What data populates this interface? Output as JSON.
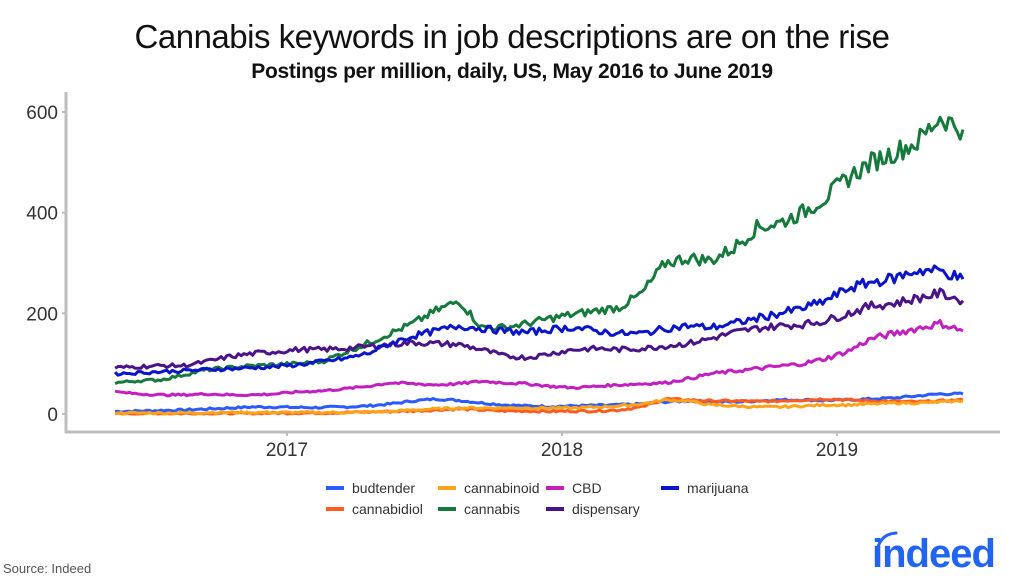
{
  "header": {
    "title": "Cannabis keywords in job descriptions are on the rise",
    "subtitle": "Postings per million, daily, US, May 2016 to June 2019"
  },
  "footer": {
    "source": "Source: Indeed",
    "logo": "indeed",
    "logo_color": "#2164f3"
  },
  "chart_data": {
    "type": "line",
    "title": "Cannabis keywords in job descriptions are on the rise",
    "subtitle": "Postings per million, daily, US, May 2016 to June 2019",
    "xlabel": "",
    "ylabel": "",
    "ylim": [
      0,
      620
    ],
    "yticks": [
      0,
      200,
      400,
      600
    ],
    "xticks": [
      "2017",
      "2018",
      "2019"
    ],
    "grid": false,
    "legend_position": "bottom",
    "x": [
      "2016-05",
      "2016-06",
      "2016-07",
      "2016-08",
      "2016-09",
      "2016-10",
      "2016-11",
      "2016-12",
      "2017-01",
      "2017-02",
      "2017-03",
      "2017-04",
      "2017-05",
      "2017-06",
      "2017-07",
      "2017-08",
      "2017-09",
      "2017-10",
      "2017-11",
      "2017-12",
      "2018-01",
      "2018-02",
      "2018-03",
      "2018-04",
      "2018-05",
      "2018-06",
      "2018-07",
      "2018-08",
      "2018-09",
      "2018-10",
      "2018-11",
      "2018-12",
      "2019-01",
      "2019-02",
      "2019-03",
      "2019-04",
      "2019-05",
      "2019-06"
    ],
    "series": [
      {
        "name": "budtender",
        "color": "#2b5bff",
        "values": [
          5,
          6,
          7,
          8,
          10,
          12,
          14,
          14,
          13,
          13,
          14,
          16,
          20,
          26,
          30,
          27,
          22,
          18,
          16,
          15,
          16,
          17,
          18,
          20,
          24,
          26,
          25,
          24,
          26,
          28,
          28,
          27,
          28,
          30,
          32,
          36,
          40,
          40
        ]
      },
      {
        "name": "cannabidiol",
        "color": "#ff5a1f",
        "values": [
          1,
          1,
          1,
          1,
          1,
          1,
          1,
          2,
          2,
          2,
          3,
          4,
          5,
          6,
          8,
          10,
          8,
          6,
          6,
          5,
          6,
          6,
          8,
          14,
          30,
          28,
          26,
          26,
          25,
          26,
          28,
          30,
          28,
          26,
          25,
          24,
          26,
          28
        ]
      },
      {
        "name": "cannabinoid",
        "color": "#ffa31a",
        "values": [
          2,
          2,
          2,
          2,
          3,
          3,
          3,
          3,
          3,
          3,
          3,
          4,
          5,
          8,
          10,
          12,
          12,
          12,
          12,
          12,
          12,
          14,
          16,
          20,
          28,
          26,
          18,
          16,
          14,
          14,
          16,
          18,
          18,
          20,
          22,
          22,
          24,
          26
        ]
      },
      {
        "name": "cannabis",
        "color": "#157a3c",
        "values": [
          62,
          66,
          68,
          78,
          88,
          92,
          96,
          98,
          100,
          104,
          122,
          140,
          160,
          180,
          205,
          225,
          172,
          172,
          180,
          190,
          198,
          205,
          212,
          240,
          300,
          310,
          305,
          330,
          370,
          380,
          400,
          430,
          470,
          500,
          520,
          540,
          590,
          565
        ]
      },
      {
        "name": "CBD",
        "color": "#c21fc0",
        "values": [
          44,
          40,
          38,
          38,
          40,
          38,
          38,
          40,
          44,
          46,
          50,
          55,
          62,
          60,
          58,
          60,
          65,
          62,
          60,
          55,
          52,
          55,
          58,
          60,
          62,
          70,
          80,
          85,
          90,
          95,
          100,
          110,
          125,
          150,
          160,
          170,
          180,
          165
        ]
      },
      {
        "name": "dispensary",
        "color": "#4a1488",
        "values": [
          92,
          94,
          96,
          96,
          104,
          114,
          120,
          124,
          128,
          128,
          130,
          134,
          138,
          142,
          140,
          138,
          128,
          115,
          112,
          120,
          128,
          130,
          128,
          130,
          135,
          140,
          150,
          162,
          170,
          175,
          178,
          185,
          200,
          215,
          220,
          230,
          240,
          225
        ]
      },
      {
        "name": "marijuana",
        "color": "#0a14c8",
        "values": [
          80,
          82,
          84,
          86,
          88,
          90,
          92,
          94,
          98,
          104,
          110,
          120,
          140,
          155,
          165,
          175,
          170,
          165,
          162,
          168,
          172,
          165,
          160,
          160,
          170,
          175,
          172,
          180,
          190,
          200,
          210,
          225,
          250,
          262,
          270,
          285,
          285,
          268
        ]
      }
    ]
  },
  "legend": {
    "items": [
      {
        "label": "budtender",
        "color": "#2b5bff"
      },
      {
        "label": "cannabinoid",
        "color": "#ffa31a"
      },
      {
        "label": "CBD",
        "color": "#c21fc0"
      },
      {
        "label": "marijuana",
        "color": "#0a14c8"
      },
      {
        "label": "cannabidiol",
        "color": "#ff5a1f"
      },
      {
        "label": "cannabis",
        "color": "#157a3c"
      },
      {
        "label": "dispensary",
        "color": "#4a1488"
      }
    ]
  }
}
